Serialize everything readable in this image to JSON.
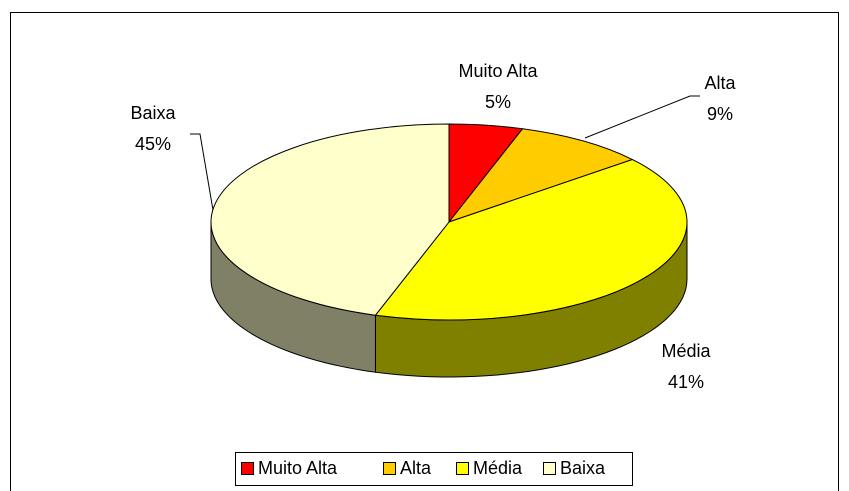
{
  "chart_data": {
    "type": "pie",
    "categories": [
      "Muito Alta",
      "Alta",
      "Média",
      "Baixa"
    ],
    "values": [
      5,
      9,
      41,
      45
    ],
    "value_labels": [
      "5%",
      "9%",
      "41%",
      "45%"
    ],
    "colors": [
      "#ff0000",
      "#ffcc00",
      "#ffff00",
      "#ffffcc"
    ],
    "side_colors": [
      "#800000",
      "#806600",
      "#808000",
      "#808066"
    ],
    "legend": "bottom"
  }
}
